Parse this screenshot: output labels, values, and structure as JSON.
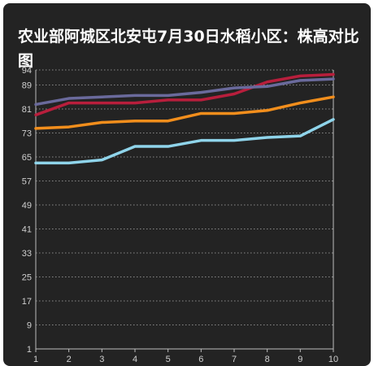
{
  "chart_data": {
    "type": "line",
    "title": "农业部阿城区北安屯7月30日水稻小区：株高对比图",
    "xlabel": "",
    "ylabel": "",
    "x": [
      1,
      2,
      3,
      4,
      5,
      6,
      7,
      8,
      9,
      10
    ],
    "x_tick_labels": [
      "1",
      "2",
      "3",
      "4",
      "5",
      "6",
      "7",
      "8",
      "9",
      "10"
    ],
    "y_ticks": [
      1,
      9,
      17,
      25,
      33,
      41,
      49,
      57,
      65,
      73,
      81,
      89,
      94
    ],
    "ylim": [
      1,
      94
    ],
    "grid": true,
    "series": [
      {
        "color": "#b81e3c",
        "values": [
          79,
          83,
          83,
          83,
          84,
          84,
          86,
          90,
          92,
          92.5
        ]
      },
      {
        "color": "#6a6a9c",
        "values": [
          82.5,
          84.5,
          85,
          85.5,
          85.5,
          86.5,
          88,
          88.5,
          90.5,
          91
        ]
      },
      {
        "color": "#f28e1c",
        "values": [
          74.5,
          75,
          76.5,
          77,
          77,
          79.5,
          79.5,
          80.5,
          83,
          85
        ]
      },
      {
        "color": "#8fd4ea",
        "values": [
          63,
          63,
          64,
          68.5,
          68.5,
          70.5,
          70.5,
          71.5,
          72,
          77.5
        ]
      }
    ]
  }
}
